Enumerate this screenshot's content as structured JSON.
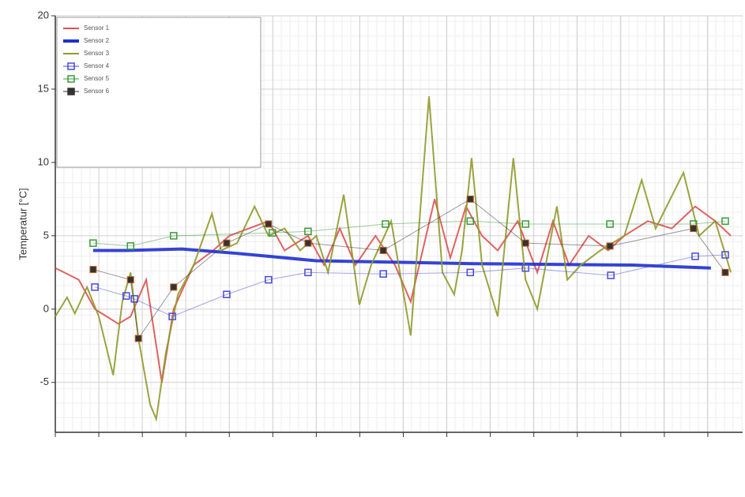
{
  "chart_data": {
    "type": "line",
    "y_label": "Temperatur [°C]",
    "ylim": [
      -8.4,
      20
    ],
    "yticks": [
      -5,
      0,
      5,
      10,
      15,
      20
    ],
    "xlim": [
      0,
      15.8
    ],
    "xticks": [
      0,
      1,
      2,
      3,
      4,
      5,
      6,
      7,
      8,
      9,
      10,
      11,
      12,
      13,
      14,
      15
    ],
    "grid": true,
    "legend": "upper left",
    "series": [
      {
        "name": "Sensor 1",
        "color": "#e05050",
        "width": 2,
        "marker": "none",
        "x": [
          0,
          0.54,
          0.91,
          1.45,
          1.73,
          2.09,
          2.45,
          2.72,
          3.18,
          3.63,
          4.0,
          4.45,
          4.9,
          5.27,
          5.81,
          6.18,
          6.54,
          6.9,
          7.36,
          7.81,
          8.17,
          8.72,
          9.08,
          9.44,
          9.81,
          10.17,
          10.63,
          11.08,
          11.44,
          11.81,
          12.26,
          12.71,
          13.08,
          13.62,
          14.17,
          14.71,
          15.17,
          15.53
        ],
        "values": [
          2.8,
          2,
          0,
          -1,
          -0.5,
          2,
          -5,
          0,
          3,
          4,
          5,
          5.5,
          6,
          4,
          5,
          3,
          5.5,
          3,
          5,
          3,
          0.5,
          7.5,
          3.5,
          7,
          5,
          4,
          6,
          2.5,
          6,
          3,
          5,
          4,
          5,
          6,
          5.5,
          7,
          6,
          5
        ]
      },
      {
        "name": "Sensor 2",
        "color": "#1f2fd0",
        "width": 4,
        "marker": "none",
        "x": [
          0.87,
          1.63,
          2.91,
          4.18,
          5.99,
          7.81,
          9.63,
          11.44,
          13.26,
          15.07
        ],
        "values": [
          4,
          4,
          4.1,
          3.8,
          3.3,
          3.2,
          3.1,
          3.05,
          3.0,
          2.8
        ]
      },
      {
        "name": "Sensor 3",
        "color": "#8f9a2a",
        "width": 2,
        "marker": "none",
        "x": [
          0,
          0.27,
          0.45,
          0.73,
          1.0,
          1.33,
          1.54,
          1.73,
          1.91,
          2.18,
          2.32,
          2.54,
          2.82,
          3.18,
          3.6,
          3.81,
          4.18,
          4.58,
          4.9,
          5.27,
          5.63,
          6.0,
          6.27,
          6.63,
          6.99,
          7.26,
          7.72,
          8.17,
          8.59,
          8.9,
          9.17,
          9.35,
          9.57,
          9.81,
          10.17,
          10.53,
          10.81,
          11.08,
          11.53,
          11.77,
          12.08,
          12.53,
          13.08,
          13.48,
          13.8,
          14.44,
          14.8,
          15.17,
          15.53
        ],
        "values": [
          -0.5,
          0.8,
          -0.3,
          1.5,
          -0.5,
          -4.5,
          0.5,
          2.5,
          -2,
          -6.5,
          -7.5,
          -3,
          1,
          3,
          6.5,
          4,
          4.5,
          7,
          5,
          5.5,
          4,
          5,
          2.5,
          7.8,
          0.3,
          3,
          6,
          -1.8,
          14.5,
          2.5,
          1,
          4,
          10.3,
          3,
          -0.5,
          10.3,
          2,
          0,
          7,
          2,
          3,
          4,
          5,
          8.8,
          5.5,
          9.3,
          5,
          6,
          2.5
        ]
      },
      {
        "name": "Sensor 4",
        "color": "#4a4ad8",
        "width": 1,
        "marker": "square",
        "x": [
          0.91,
          1.63,
          1.82,
          2.69,
          3.94,
          4.9,
          5.81,
          7.54,
          9.54,
          10.81,
          12.77,
          14.71,
          15.4
        ],
        "values": [
          1.5,
          0.9,
          0.7,
          -0.5,
          1,
          2,
          2.5,
          2.4,
          2.5,
          2.8,
          2.3,
          3.6,
          3.7
        ]
      },
      {
        "name": "Sensor 5",
        "color": "#3a9a3a",
        "width": 1,
        "marker": "square",
        "x": [
          0.87,
          1.73,
          2.72,
          4.99,
          5.81,
          7.59,
          9.54,
          10.81,
          12.75,
          14.67,
          15.4
        ],
        "values": [
          4.5,
          4.3,
          5,
          5.2,
          5.3,
          5.8,
          6,
          5.8,
          5.8,
          5.8,
          6
        ]
      },
      {
        "name": "Sensor 6",
        "color": "#333333",
        "width": 1,
        "marker": "filled",
        "x": [
          0.87,
          1.73,
          1.91,
          2.72,
          3.94,
          4.9,
          5.81,
          7.54,
          9.54,
          10.81,
          12.75,
          14.67,
          15.4
        ],
        "values": [
          2.7,
          2,
          -2,
          1.5,
          4.5,
          5.8,
          4.5,
          4,
          7.5,
          4.5,
          4.3,
          5.5,
          2.5
        ]
      }
    ]
  }
}
